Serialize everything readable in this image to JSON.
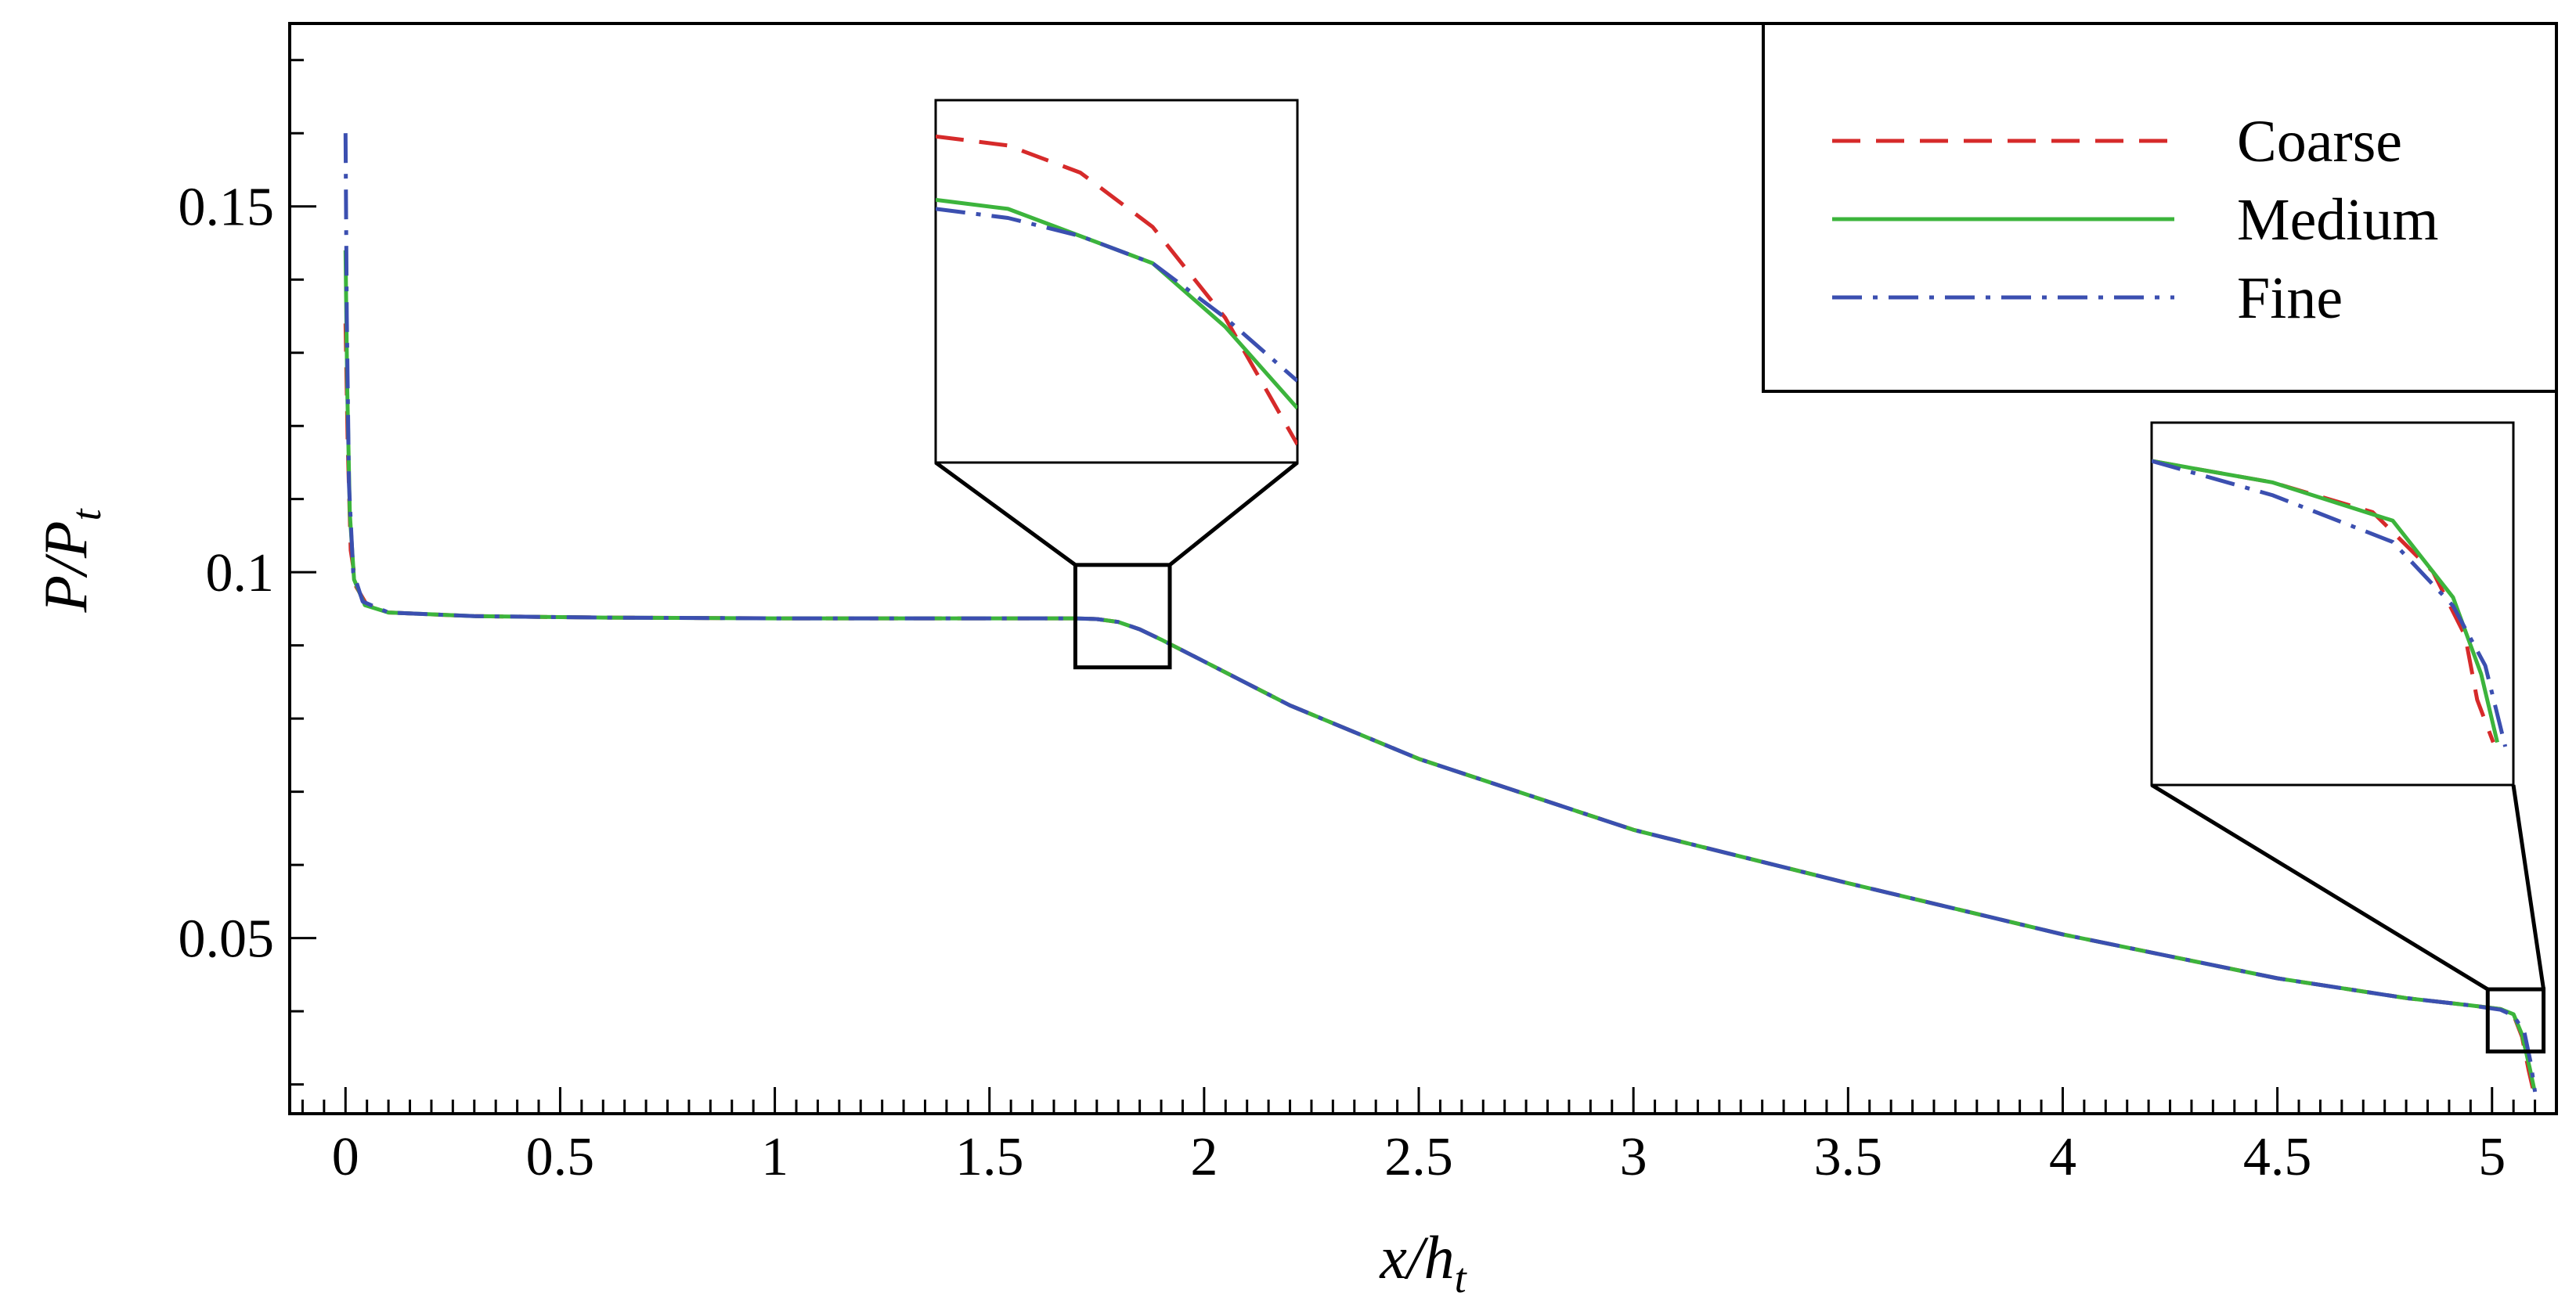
{
  "chart_data": {
    "type": "line",
    "title": "",
    "xlabel": {
      "base": "x/h",
      "sub": "t"
    },
    "ylabel": {
      "base": "P/P",
      "sub": "t"
    },
    "xlim": [
      -0.13,
      5.15
    ],
    "ylim": [
      0.026,
      0.175
    ],
    "x_ticks": [
      0,
      0.5,
      1,
      1.5,
      2,
      2.5,
      3,
      3.5,
      4,
      4.5,
      5
    ],
    "x_tick_labels": [
      "0",
      "0.5",
      "1",
      "1.5",
      "2",
      "2.5",
      "3",
      "3.5",
      "4",
      "4.5",
      "5"
    ],
    "y_ticks": [
      0.05,
      0.1,
      0.15
    ],
    "y_tick_labels": [
      "0.05",
      "0.1",
      "0.15"
    ],
    "grid": false,
    "legend": {
      "position": "top-right",
      "entries": [
        "Coarse",
        "Medium",
        "Fine"
      ]
    },
    "series": [
      {
        "name": "Coarse",
        "color": "#d62a2a",
        "dash": "dashed",
        "points": [
          [
            0.0,
            0.134
          ],
          [
            0.005,
            0.118
          ],
          [
            0.012,
            0.103
          ],
          [
            0.025,
            0.098
          ],
          [
            0.05,
            0.0955
          ],
          [
            0.1,
            0.0945
          ],
          [
            0.3,
            0.094
          ],
          [
            0.6,
            0.0938
          ],
          [
            1.0,
            0.0937
          ],
          [
            1.4,
            0.0937
          ],
          [
            1.6,
            0.0937
          ],
          [
            1.7,
            0.0937
          ],
          [
            1.75,
            0.0936
          ],
          [
            1.8,
            0.0932
          ],
          [
            1.85,
            0.0922
          ],
          [
            1.9,
            0.0908
          ],
          [
            2.0,
            0.0878
          ],
          [
            2.2,
            0.0818
          ],
          [
            2.5,
            0.0745
          ],
          [
            3.0,
            0.0648
          ],
          [
            3.5,
            0.0575
          ],
          [
            4.0,
            0.0505
          ],
          [
            4.5,
            0.0445
          ],
          [
            4.8,
            0.0418
          ],
          [
            4.95,
            0.0408
          ],
          [
            5.02,
            0.0403
          ],
          [
            5.05,
            0.0395
          ],
          [
            5.07,
            0.0365
          ],
          [
            5.085,
            0.032
          ],
          [
            5.095,
            0.0295
          ]
        ]
      },
      {
        "name": "Medium",
        "color": "#3cb43c",
        "dash": "solid",
        "points": [
          [
            0.0,
            0.144
          ],
          [
            0.004,
            0.125
          ],
          [
            0.01,
            0.108
          ],
          [
            0.02,
            0.099
          ],
          [
            0.045,
            0.0955
          ],
          [
            0.1,
            0.0945
          ],
          [
            0.3,
            0.094
          ],
          [
            0.6,
            0.0938
          ],
          [
            1.0,
            0.0937
          ],
          [
            1.4,
            0.0937
          ],
          [
            1.6,
            0.0937
          ],
          [
            1.7,
            0.0937
          ],
          [
            1.75,
            0.0936
          ],
          [
            1.8,
            0.0932
          ],
          [
            1.85,
            0.0922
          ],
          [
            1.9,
            0.0908
          ],
          [
            2.0,
            0.0878
          ],
          [
            2.2,
            0.0818
          ],
          [
            2.5,
            0.0745
          ],
          [
            3.0,
            0.0648
          ],
          [
            3.5,
            0.0575
          ],
          [
            4.0,
            0.0505
          ],
          [
            4.5,
            0.0445
          ],
          [
            4.8,
            0.0418
          ],
          [
            4.95,
            0.0408
          ],
          [
            5.02,
            0.0403
          ],
          [
            5.05,
            0.0396
          ],
          [
            5.07,
            0.0368
          ],
          [
            5.088,
            0.0322
          ],
          [
            5.098,
            0.0294
          ]
        ]
      },
      {
        "name": "Fine",
        "color": "#3b4fb0",
        "dash": "dashdot",
        "points": [
          [
            0.0,
            0.16
          ],
          [
            0.003,
            0.135
          ],
          [
            0.008,
            0.112
          ],
          [
            0.018,
            0.1
          ],
          [
            0.04,
            0.096
          ],
          [
            0.1,
            0.0945
          ],
          [
            0.3,
            0.094
          ],
          [
            0.6,
            0.0938
          ],
          [
            1.0,
            0.0937
          ],
          [
            1.4,
            0.0937
          ],
          [
            1.6,
            0.0937
          ],
          [
            1.7,
            0.0937
          ],
          [
            1.75,
            0.0936
          ],
          [
            1.8,
            0.0932
          ],
          [
            1.85,
            0.0922
          ],
          [
            1.9,
            0.0908
          ],
          [
            2.0,
            0.0878
          ],
          [
            2.2,
            0.0818
          ],
          [
            2.5,
            0.0745
          ],
          [
            3.0,
            0.0648
          ],
          [
            3.5,
            0.0575
          ],
          [
            4.0,
            0.0505
          ],
          [
            4.5,
            0.0445
          ],
          [
            4.8,
            0.0418
          ],
          [
            4.95,
            0.0408
          ],
          [
            5.02,
            0.0402
          ],
          [
            5.05,
            0.0394
          ],
          [
            5.075,
            0.0372
          ],
          [
            5.09,
            0.033
          ],
          [
            5.1,
            0.029
          ]
        ]
      }
    ],
    "insets": [
      {
        "region": {
          "x": [
            1.7,
            1.92
          ],
          "y": [
            0.087,
            0.101
          ]
        },
        "range": {
          "x": [
            1.76,
            1.86
          ],
          "y": [
            0.0918,
            0.0938
          ]
        },
        "series": [
          {
            "name": "Coarse",
            "points": [
              [
                1.76,
                0.0936
              ],
              [
                1.78,
                0.09355
              ],
              [
                1.8,
                0.0934
              ],
              [
                1.82,
                0.0931
              ],
              [
                1.84,
                0.0926
              ],
              [
                1.86,
                0.0919
              ]
            ]
          },
          {
            "name": "Medium",
            "points": [
              [
                1.76,
                0.09325
              ],
              [
                1.78,
                0.0932
              ],
              [
                1.8,
                0.09305
              ],
              [
                1.82,
                0.0929
              ],
              [
                1.84,
                0.09255
              ],
              [
                1.86,
                0.0921
              ]
            ]
          },
          {
            "name": "Fine",
            "points": [
              [
                1.76,
                0.0932
              ],
              [
                1.78,
                0.09315
              ],
              [
                1.8,
                0.09305
              ],
              [
                1.82,
                0.0929
              ],
              [
                1.84,
                0.0926
              ],
              [
                1.86,
                0.09225
              ]
            ]
          }
        ]
      },
      {
        "region": {
          "x": [
            4.99,
            5.12
          ],
          "y": [
            0.0345,
            0.043
          ]
        },
        "range": {
          "x": [
            5.0,
            5.09
          ],
          "y": [
            0.033,
            0.0415
          ]
        },
        "series": [
          {
            "name": "Coarse",
            "points": [
              [
                5.0,
                0.0406
              ],
              [
                5.03,
                0.0401
              ],
              [
                5.055,
                0.0394
              ],
              [
                5.07,
                0.038
              ],
              [
                5.078,
                0.0365
              ],
              [
                5.081,
                0.035
              ],
              [
                5.085,
                0.034
              ]
            ]
          },
          {
            "name": "Medium",
            "points": [
              [
                5.0,
                0.0406
              ],
              [
                5.03,
                0.0401
              ],
              [
                5.06,
                0.0392
              ],
              [
                5.075,
                0.0374
              ],
              [
                5.082,
                0.0356
              ],
              [
                5.086,
                0.034
              ]
            ]
          },
          {
            "name": "Fine",
            "points": [
              [
                5.0,
                0.0406
              ],
              [
                5.03,
                0.0398
              ],
              [
                5.06,
                0.0387
              ],
              [
                5.075,
                0.0372
              ],
              [
                5.083,
                0.0358
              ],
              [
                5.088,
                0.0339
              ]
            ]
          }
        ]
      }
    ]
  }
}
